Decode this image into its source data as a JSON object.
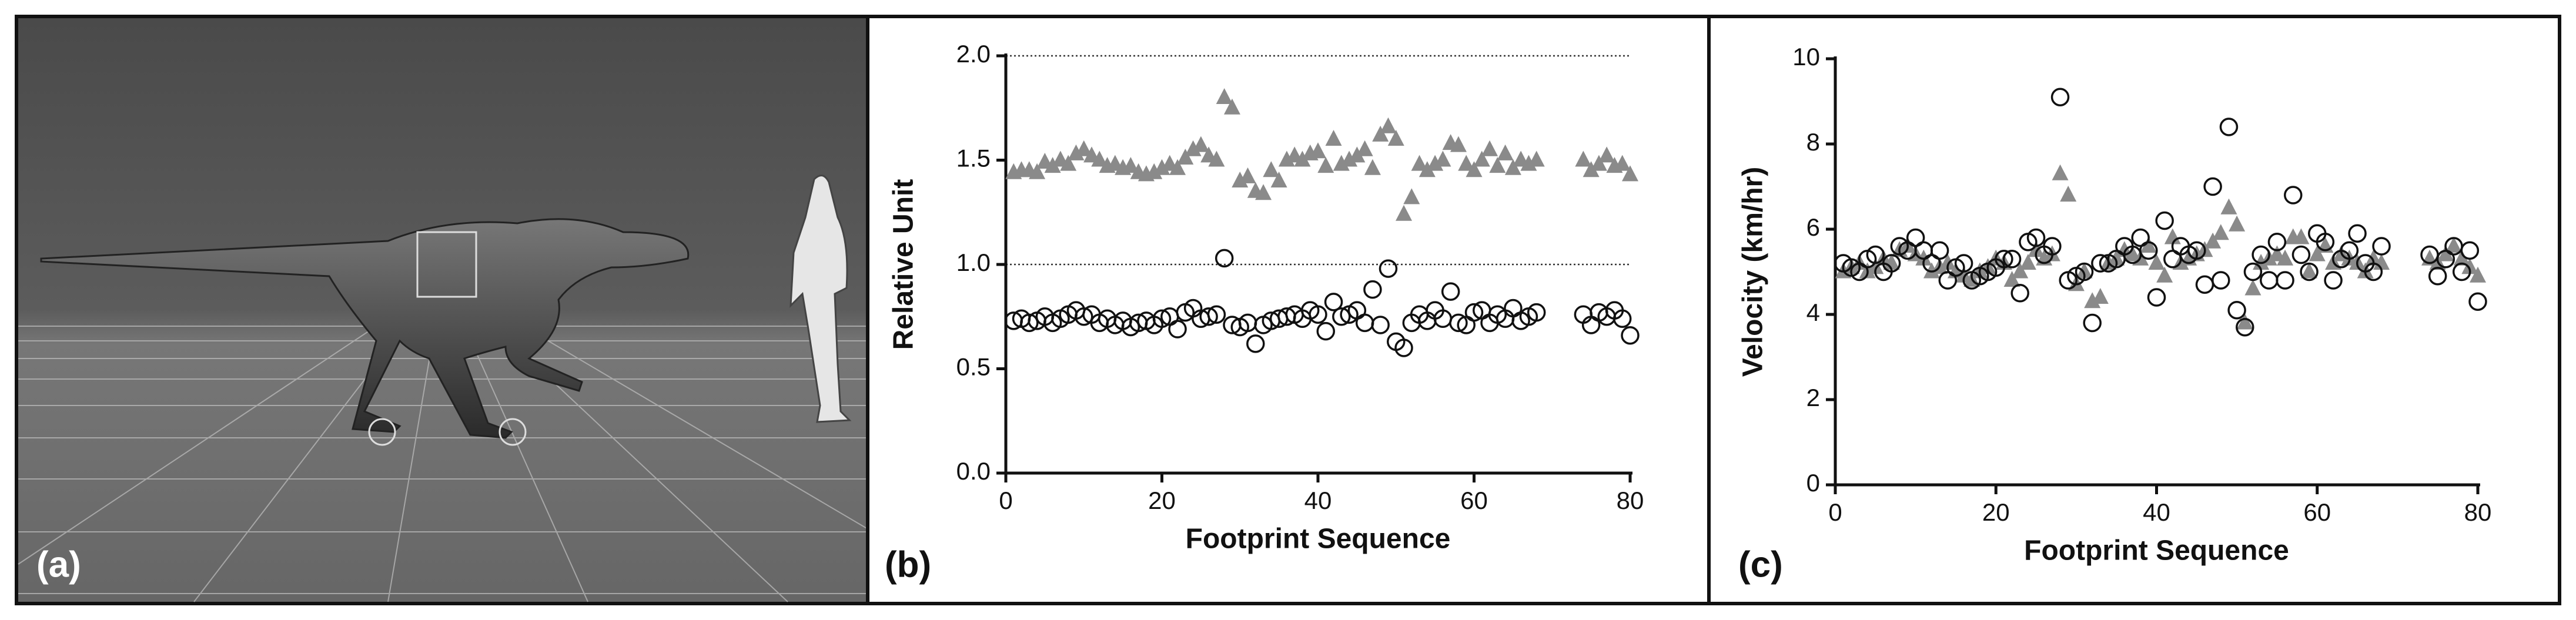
{
  "figure_label": "(a)",
  "chart_data": [
    {
      "type": "scatter",
      "panel_label": "(b)",
      "x_label": "Footprint Sequence",
      "y_label": "Relative Unit",
      "x": [
        1,
        2,
        3,
        4,
        5,
        6,
        7,
        8,
        9,
        10,
        11,
        12,
        13,
        14,
        15,
        16,
        17,
        18,
        19,
        20,
        21,
        22,
        23,
        24,
        25,
        26,
        27,
        28,
        29,
        30,
        31,
        32,
        33,
        34,
        35,
        36,
        37,
        38,
        39,
        40,
        41,
        42,
        43,
        44,
        45,
        46,
        47,
        48,
        49,
        50,
        51,
        52,
        53,
        54,
        55,
        56,
        57,
        58,
        59,
        60,
        61,
        62,
        63,
        64,
        65,
        66,
        67,
        68,
        74,
        75,
        76,
        77,
        78,
        79,
        80
      ],
      "series": [
        {
          "marker": "triangle",
          "color": "#8a8a8a",
          "values": [
            1.44,
            1.45,
            1.45,
            1.44,
            1.49,
            1.47,
            1.5,
            1.48,
            1.53,
            1.55,
            1.52,
            1.5,
            1.47,
            1.48,
            1.46,
            1.47,
            1.44,
            1.43,
            1.44,
            1.46,
            1.48,
            1.46,
            1.51,
            1.55,
            1.57,
            1.52,
            1.5,
            1.8,
            1.75,
            1.4,
            1.42,
            1.35,
            1.34,
            1.45,
            1.4,
            1.5,
            1.52,
            1.5,
            1.53,
            1.54,
            1.47,
            1.6,
            1.48,
            1.5,
            1.52,
            1.55,
            1.46,
            1.62,
            1.66,
            1.6,
            1.24,
            1.32,
            1.48,
            1.45,
            1.48,
            1.5,
            1.58,
            1.57,
            1.48,
            1.45,
            1.5,
            1.55,
            1.47,
            1.53,
            1.46,
            1.5,
            1.48,
            1.5,
            1.5,
            1.45,
            1.48,
            1.52,
            1.47,
            1.48,
            1.43
          ]
        },
        {
          "marker": "circle",
          "color": "#111111",
          "values": [
            0.73,
            0.74,
            0.72,
            0.73,
            0.75,
            0.72,
            0.74,
            0.76,
            0.78,
            0.75,
            0.76,
            0.72,
            0.74,
            0.71,
            0.73,
            0.7,
            0.72,
            0.73,
            0.71,
            0.74,
            0.75,
            0.69,
            0.77,
            0.79,
            0.74,
            0.75,
            0.76,
            1.03,
            0.71,
            0.7,
            0.72,
            0.62,
            0.71,
            0.73,
            0.74,
            0.75,
            0.76,
            0.74,
            0.78,
            0.76,
            0.68,
            0.82,
            0.75,
            0.76,
            0.78,
            0.72,
            0.88,
            0.71,
            0.98,
            0.63,
            0.6,
            0.72,
            0.76,
            0.73,
            0.78,
            0.74,
            0.87,
            0.72,
            0.71,
            0.77,
            0.78,
            0.72,
            0.76,
            0.74,
            0.79,
            0.73,
            0.75,
            0.77,
            0.76,
            0.71,
            0.77,
            0.75,
            0.78,
            0.74,
            0.66
          ]
        }
      ],
      "xlim": [
        0,
        80
      ],
      "xticks": [
        0,
        20,
        40,
        60,
        80
      ],
      "ylim": [
        0,
        2
      ],
      "yticks": [
        {
          "value": 0,
          "label": "0.0"
        },
        {
          "value": 0.5,
          "label": "0.5"
        },
        {
          "value": 1,
          "label": "1.0"
        },
        {
          "value": 1.5,
          "label": "1.5"
        },
        {
          "value": 2,
          "label": "2.0"
        }
      ],
      "grid_values": [
        1,
        2
      ]
    },
    {
      "type": "scatter",
      "panel_label": "(c)",
      "x_label": "Footprint Sequence",
      "y_label": "Velocity (km/hr)",
      "x": [
        1,
        2,
        3,
        4,
        5,
        6,
        7,
        8,
        9,
        10,
        11,
        12,
        13,
        14,
        15,
        16,
        17,
        18,
        19,
        20,
        21,
        22,
        23,
        24,
        25,
        26,
        27,
        28,
        29,
        30,
        31,
        32,
        33,
        34,
        35,
        36,
        37,
        38,
        39,
        40,
        41,
        42,
        43,
        44,
        45,
        46,
        47,
        48,
        49,
        50,
        51,
        52,
        53,
        54,
        55,
        56,
        57,
        58,
        59,
        60,
        61,
        62,
        63,
        64,
        65,
        66,
        67,
        68,
        74,
        75,
        76,
        77,
        78,
        79,
        80
      ],
      "series": [
        {
          "marker": "triangle",
          "color": "#8a8a8a",
          "values": [
            5.0,
            5.1,
            5.2,
            5.0,
            5.1,
            5.3,
            5.2,
            5.5,
            5.6,
            5.4,
            5.3,
            5.0,
            5.1,
            5.2,
            5.0,
            4.9,
            4.8,
            5.0,
            5.1,
            5.3,
            5.2,
            4.8,
            5.0,
            5.2,
            5.5,
            5.3,
            5.4,
            7.3,
            6.8,
            4.7,
            5.0,
            4.3,
            4.4,
            5.2,
            5.3,
            5.5,
            5.4,
            5.3,
            5.6,
            5.2,
            4.9,
            5.8,
            5.2,
            5.3,
            5.4,
            5.5,
            5.7,
            5.9,
            6.5,
            6.1,
            3.8,
            4.6,
            5.2,
            5.3,
            5.4,
            5.3,
            5.8,
            5.8,
            5.0,
            5.4,
            5.6,
            5.2,
            5.4,
            5.3,
            5.2,
            5.0,
            5.3,
            5.2,
            5.3,
            5.2,
            5.4,
            5.6,
            5.3,
            5.1,
            4.9
          ]
        },
        {
          "marker": "circle",
          "color": "#111111",
          "values": [
            5.2,
            5.1,
            5.0,
            5.3,
            5.4,
            5.0,
            5.2,
            5.6,
            5.5,
            5.8,
            5.5,
            5.2,
            5.5,
            4.8,
            5.1,
            5.2,
            4.8,
            4.9,
            5.0,
            5.1,
            5.3,
            5.3,
            4.5,
            5.7,
            5.8,
            5.4,
            5.6,
            9.1,
            4.8,
            4.9,
            5.0,
            3.8,
            5.2,
            5.2,
            5.3,
            5.6,
            5.4,
            5.8,
            5.5,
            4.4,
            6.2,
            5.3,
            5.6,
            5.4,
            5.5,
            4.7,
            7.0,
            4.8,
            8.4,
            4.1,
            3.7,
            5.0,
            5.4,
            4.8,
            5.7,
            4.8,
            6.8,
            5.4,
            5.0,
            5.9,
            5.7,
            4.8,
            5.3,
            5.5,
            5.9,
            5.2,
            5.0,
            5.6,
            5.4,
            4.9,
            5.3,
            5.6,
            5.0,
            5.5,
            4.3
          ]
        }
      ],
      "xlim": [
        0,
        80
      ],
      "xticks": [
        0,
        20,
        40,
        60,
        80
      ],
      "ylim": [
        0,
        10
      ],
      "yticks": [
        0,
        2,
        4,
        6,
        8,
        10
      ]
    }
  ]
}
